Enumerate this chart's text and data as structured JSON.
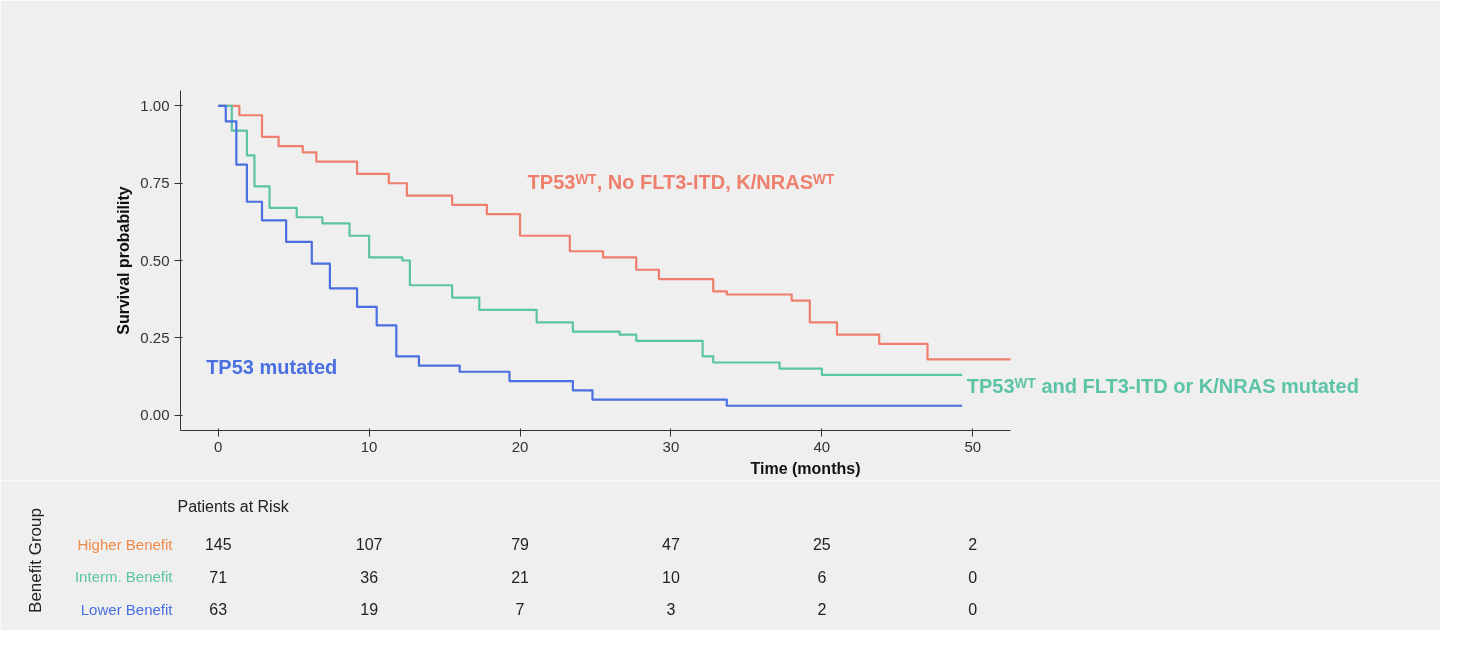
{
  "chart_data": [
    {
      "type": "step",
      "xlabel": "Time (months)",
      "ylabel": "Survival probability",
      "xlim": [
        -2.5,
        52.5
      ],
      "xticks": [
        0,
        10,
        20,
        30,
        40,
        50
      ],
      "ylim": [
        -0.05,
        1.05
      ],
      "yticks": [
        {
          "value": 0,
          "label": "0.00"
        },
        {
          "value": 0.25,
          "label": "0.25"
        },
        {
          "value": 0.5,
          "label": "0.50"
        },
        {
          "value": 0.75,
          "label": "0.75"
        },
        {
          "value": 1,
          "label": "1.00"
        }
      ],
      "grid": false,
      "line_style": "solid",
      "series": [
        {
          "name": "TP53ᵂᵀ, No FLT3-ITD, K/NRASᵂᵀ",
          "color": "#ee7f6c",
          "x": [
            0,
            1.4,
            2.9,
            4,
            5.6,
            6.5,
            9.2,
            11.3,
            12.5,
            14,
            15.5,
            17.8,
            20,
            23.3,
            25.5,
            27.7,
            29.2,
            31,
            32.8,
            33.7,
            38,
            39.2,
            41,
            43.8,
            47,
            52.5
          ],
          "values": [
            1.0,
            0.97,
            0.9,
            0.87,
            0.85,
            0.82,
            0.78,
            0.75,
            0.71,
            0.71,
            0.68,
            0.65,
            0.58,
            0.53,
            0.51,
            0.47,
            0.44,
            0.44,
            0.4,
            0.39,
            0.37,
            0.3,
            0.26,
            0.23,
            0.18,
            0.18
          ]
        },
        {
          "name": "TP53ᵂᵀ and FLT3-ITD or K/NRAS mutated",
          "color": "#5cc4a6",
          "x": [
            0,
            0.9,
            1.9,
            2.4,
            3.4,
            5.2,
            6.9,
            8.7,
            10,
            12.2,
            12.7,
            15.5,
            17.3,
            21.1,
            23.5,
            26.6,
            27.7,
            32.1,
            32.8,
            37.2,
            40,
            49.3
          ],
          "values": [
            1.0,
            0.92,
            0.84,
            0.74,
            0.67,
            0.64,
            0.62,
            0.58,
            0.51,
            0.5,
            0.42,
            0.38,
            0.34,
            0.3,
            0.27,
            0.26,
            0.24,
            0.19,
            0.17,
            0.15,
            0.13,
            0.13
          ]
        },
        {
          "name": "TP53 mutated",
          "color": "#4a6fe0",
          "x": [
            0,
            0.5,
            1.2,
            1.9,
            2.9,
            4.5,
            6.2,
            7.4,
            9.2,
            10.5,
            11.8,
            13.3,
            16,
            19.3,
            23.5,
            24.8,
            33.7,
            49.3
          ],
          "values": [
            1.0,
            0.95,
            0.81,
            0.69,
            0.63,
            0.56,
            0.49,
            0.41,
            0.35,
            0.29,
            0.19,
            0.16,
            0.14,
            0.11,
            0.08,
            0.05,
            0.03,
            0.03
          ]
        }
      ]
    },
    {
      "type": "heatmap",
      "title": "Patients at Risk",
      "ylabel": "Benefit Group",
      "categories": [
        null,
        null,
        null,
        null,
        null,
        null
      ],
      "data_labels": true,
      "y_categories": [
        "Higher Benefit",
        "Interm. Benefit",
        "Lower Benefit"
      ],
      "colors": [
        "#ee8a4a",
        "#5cc4a6",
        "#4a6fe0"
      ],
      "cells": [
        [
          145,
          107,
          79,
          47,
          25,
          2
        ],
        [
          71,
          36,
          21,
          10,
          6,
          0
        ],
        [
          63,
          19,
          7,
          3,
          2,
          0
        ]
      ]
    }
  ]
}
